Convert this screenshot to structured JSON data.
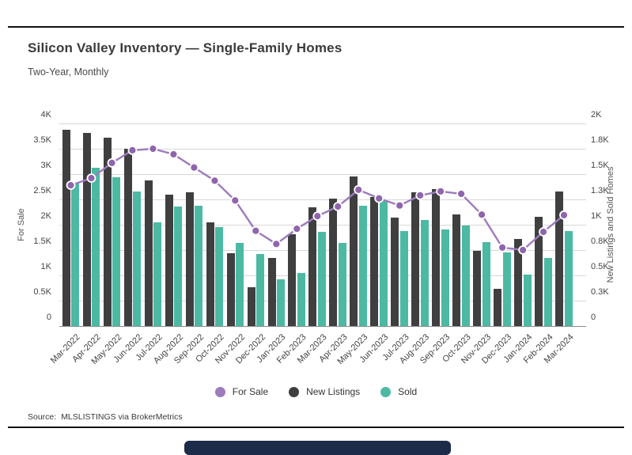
{
  "header": {
    "title": "Silicon Valley Inventory — Single-Family Homes",
    "subtitle": "Two-Year, Monthly"
  },
  "footer": {
    "source_label": "Source:",
    "source_value": "MLSLISTINGS via BrokerMetrics"
  },
  "chart_data": {
    "type": "combo",
    "title": "Silicon Valley Inventory — Single-Family Homes",
    "subtitle": "Two-Year, Monthly",
    "grid": true,
    "legend_position": "bottom",
    "categories": [
      "Mar-2022",
      "Apr-2022",
      "May-2022",
      "Jun-2022",
      "Jul-2022",
      "Aug-2022",
      "Sep-2022",
      "Oct-2022",
      "Nov-2022",
      "Dec-2022",
      "Jan-2023",
      "Feb-2023",
      "Mar-2023",
      "Apr-2023",
      "May-2023",
      "Jun-2023",
      "Jul-2023",
      "Aug-2023",
      "Sep-2023",
      "Oct-2023",
      "Nov-2023",
      "Dec-2023",
      "Jan-2024",
      "Feb-2024",
      "Mar-2024"
    ],
    "left_axis": {
      "label": "For Sale",
      "min": 0,
      "max": 4000,
      "ticks": [
        "0",
        "0.5K",
        "1K",
        "1.5K",
        "2K",
        "2.5K",
        "3K",
        "3.5K",
        "4K"
      ]
    },
    "right_axis": {
      "label": "New Listings and Sold Homes",
      "min": 0,
      "max": 2000,
      "ticks": [
        "0",
        "0.3K",
        "0.5K",
        "0.8K",
        "1K",
        "1.3K",
        "1.5K",
        "1.8K",
        "2K"
      ]
    },
    "series": [
      {
        "name": "For Sale",
        "type": "line",
        "axis": "left",
        "color": "#9d7bbd",
        "dot_color": "#8f65ad",
        "values": [
          2780,
          2920,
          3220,
          3470,
          3500,
          3390,
          3130,
          2870,
          2480,
          1880,
          1620,
          1920,
          2170,
          2360,
          2690,
          2520,
          2380,
          2580,
          2660,
          2610,
          2200,
          1550,
          1500,
          1860,
          2190
        ]
      },
      {
        "name": "New Listings",
        "type": "bar",
        "axis": "right",
        "color": "#3f3f3f",
        "values": [
          1940,
          1910,
          1860,
          1750,
          1440,
          1300,
          1320,
          1020,
          720,
          380,
          670,
          910,
          1170,
          1260,
          1480,
          1270,
          1070,
          1320,
          1350,
          1100,
          740,
          370,
          860,
          1080,
          1330
        ]
      },
      {
        "name": "Sold",
        "type": "bar",
        "axis": "right",
        "color": "#4cb9a3",
        "values": [
          1410,
          1560,
          1470,
          1330,
          1020,
          1180,
          1190,
          980,
          820,
          710,
          460,
          520,
          930,
          820,
          1190,
          1240,
          940,
          1050,
          950,
          990,
          830,
          730,
          510,
          670,
          940
        ]
      }
    ]
  }
}
